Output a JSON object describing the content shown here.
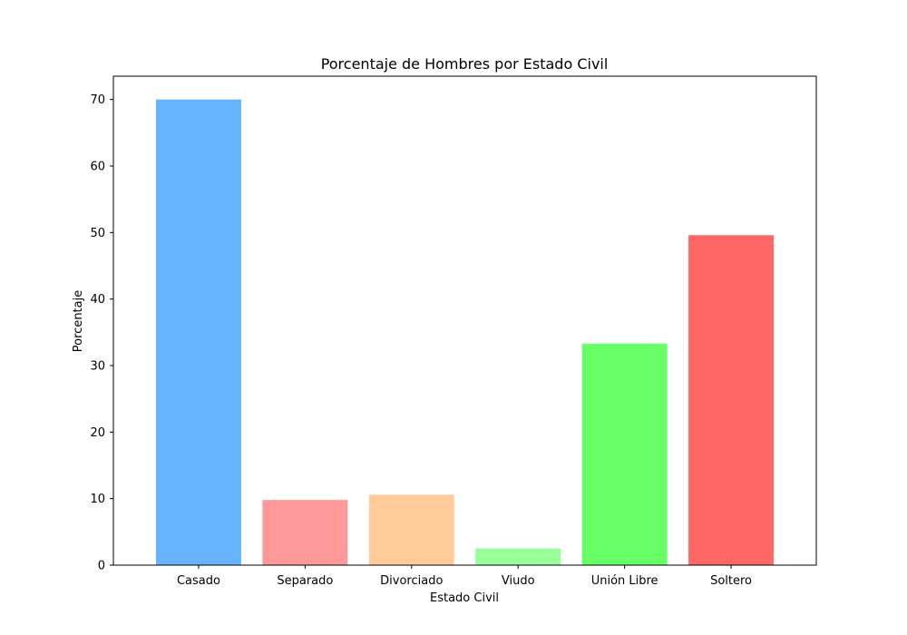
{
  "chart_data": {
    "type": "bar",
    "title": "Porcentaje de Hombres por Estado Civil",
    "xlabel": "Estado Civil",
    "ylabel": "Porcentaje",
    "categories": [
      "Casado",
      "Separado",
      "Divorciado",
      "Viudo",
      "Unión Libre",
      "Soltero"
    ],
    "values": [
      70.0,
      9.8,
      10.6,
      2.5,
      33.3,
      49.6
    ],
    "colors": [
      "#66b3ff",
      "#ff9999",
      "#ffcc99",
      "#99ff99",
      "#66ff66",
      "#ff6666"
    ],
    "ylim": [
      0,
      73.5
    ],
    "yticks": [
      0,
      10,
      20,
      30,
      40,
      50,
      60,
      70
    ],
    "grid": false,
    "legend": "none"
  }
}
